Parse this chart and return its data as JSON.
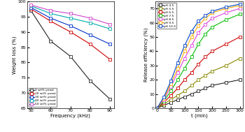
{
  "left_chart": {
    "xlabel": "Frequency (kHz)",
    "ylabel": "Weight loss (%)",
    "xlim": [
      48,
      92
    ],
    "ylim": [
      65,
      100
    ],
    "xticks": [
      50,
      60,
      70,
      80,
      90
    ],
    "yticks": [
      65,
      70,
      75,
      80,
      85,
      90,
      95,
      100
    ],
    "series": [
      {
        "label": "0 wt% yeast",
        "color": "#222222",
        "marker": "s",
        "x": [
          50,
          60,
          70,
          80,
          90
        ],
        "y": [
          97.0,
          87.0,
          82.0,
          74.0,
          68.0
        ]
      },
      {
        "label": "20 wt% yeast",
        "color": "#cc0000",
        "marker": "s",
        "x": [
          50,
          60,
          70,
          80,
          90
        ],
        "y": [
          97.5,
          93.5,
          90.0,
          86.0,
          81.0
        ]
      },
      {
        "label": "30 wt% yeast",
        "color": "#0033cc",
        "marker": "s",
        "x": [
          50,
          60,
          70,
          80,
          90
        ],
        "y": [
          98.0,
          94.5,
          92.0,
          89.0,
          86.0
        ]
      },
      {
        "label": "40 wt% yeast",
        "color": "#00aaaa",
        "marker": "s",
        "x": [
          50,
          60,
          70,
          80,
          90
        ],
        "y": [
          98.5,
          96.0,
          94.5,
          93.0,
          91.0
        ]
      },
      {
        "label": "50 wt% yeast",
        "color": "#cc44cc",
        "marker": "s",
        "x": [
          50,
          60,
          70,
          80,
          90
        ],
        "y": [
          98.8,
          97.0,
          96.0,
          94.5,
          92.5
        ]
      }
    ]
  },
  "right_chart": {
    "xlabel": "t (min)",
    "ylabel": "Release efficiency (%)",
    "xlim": [
      -5,
      310
    ],
    "ylim": [
      0,
      75
    ],
    "xticks": [
      0,
      50,
      100,
      150,
      200,
      250,
      300
    ],
    "yticks": [
      0,
      10,
      20,
      30,
      40,
      50,
      60,
      70
    ],
    "series": [
      {
        "label": "pH 4.5",
        "color": "#222222",
        "marker": "s",
        "x": [
          0,
          25,
          50,
          75,
          100,
          125,
          150,
          175,
          200,
          250,
          300
        ],
        "y": [
          0,
          2,
          4,
          6,
          8,
          10,
          12,
          14,
          16,
          18,
          20
        ]
      },
      {
        "label": "pH 5.5",
        "color": "#888800",
        "marker": "s",
        "x": [
          0,
          25,
          50,
          75,
          100,
          125,
          150,
          175,
          200,
          250,
          300
        ],
        "y": [
          0,
          3,
          6,
          9,
          12,
          16,
          20,
          23,
          26,
          30,
          35
        ]
      },
      {
        "label": "pH 6.5",
        "color": "#cc0000",
        "marker": "s",
        "x": [
          0,
          25,
          50,
          75,
          100,
          125,
          150,
          175,
          200,
          250,
          300
        ],
        "y": [
          0,
          4,
          9,
          14,
          20,
          25,
          31,
          36,
          40,
          45,
          50
        ]
      },
      {
        "label": "pH 7.5",
        "color": "#00bb00",
        "marker": "s",
        "x": [
          0,
          25,
          50,
          75,
          100,
          125,
          150,
          175,
          200,
          250,
          300
        ],
        "y": [
          0,
          5,
          12,
          20,
          28,
          36,
          45,
          52,
          57,
          62,
          66
        ]
      },
      {
        "label": "pH 8.5",
        "color": "#dd44dd",
        "marker": "s",
        "x": [
          0,
          25,
          50,
          75,
          100,
          125,
          150,
          175,
          200,
          250,
          300
        ],
        "y": [
          0,
          6,
          15,
          25,
          35,
          44,
          53,
          59,
          63,
          67,
          70
        ]
      },
      {
        "label": "pH 9.5",
        "color": "#ffaa00",
        "marker": "s",
        "x": [
          0,
          25,
          50,
          75,
          100,
          125,
          150,
          175,
          200,
          250,
          300
        ],
        "y": [
          0,
          7,
          17,
          28,
          40,
          50,
          58,
          63,
          67,
          70,
          72
        ]
      },
      {
        "label": "pH 10.5",
        "color": "#0044cc",
        "marker": "s",
        "x": [
          0,
          25,
          50,
          75,
          100,
          125,
          150,
          175,
          200,
          250,
          300
        ],
        "y": [
          0,
          8,
          19,
          32,
          44,
          54,
          61,
          65,
          68,
          71,
          73
        ]
      }
    ]
  },
  "bg_color": "#ffffff"
}
